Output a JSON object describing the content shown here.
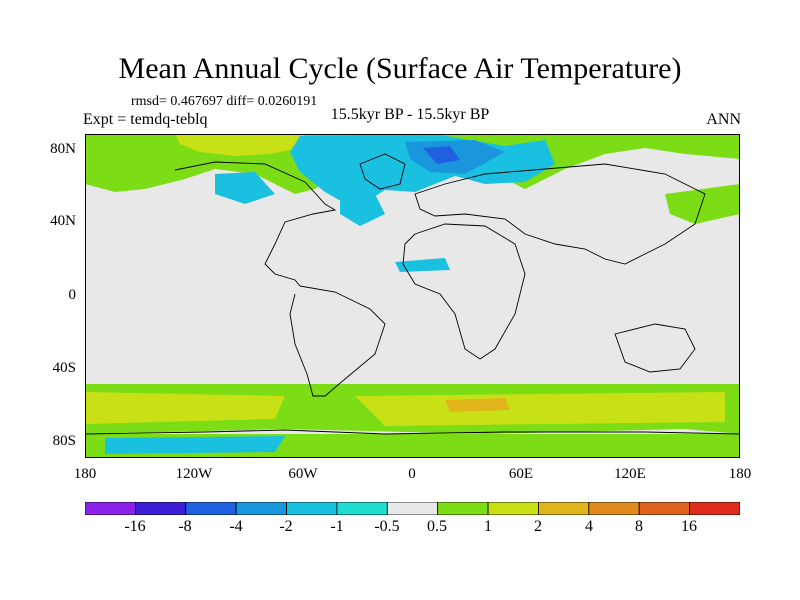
{
  "title": "Mean Annual Cycle (Surface Air Temperature)",
  "stats": "rmsd= 0.467697 diff= 0.0260191",
  "experiment": "Expt = temdq-teblq",
  "comparison": "15.5kyr BP - 15.5kyr BP",
  "season": "ANN",
  "lat_labels": [
    "80N",
    "40N",
    "0",
    "40S",
    "80S"
  ],
  "lon_labels": [
    "180",
    "120W",
    "60W",
    "0",
    "60E",
    "120E",
    "180"
  ],
  "colorbar": {
    "labels": [
      "-16",
      "-8",
      "-4",
      "-2",
      "-1",
      "-0.5",
      "0.5",
      "1",
      "2",
      "4",
      "8",
      "16"
    ],
    "colors": [
      "#8c22ea",
      "#3c1fd6",
      "#1f5fe0",
      "#1a97dc",
      "#19c0e0",
      "#1fdcd0",
      "#e8e8e8",
      "#7cdc16",
      "#c8e016",
      "#e0b41a",
      "#e08a1f",
      "#e06420",
      "#e02c1c"
    ]
  },
  "palette": {
    "neutral": "#e8e8e8",
    "pos1": "#7cdc16",
    "pos2": "#c8e016",
    "pos3": "#e0b41a",
    "pos4": "#e08a1f",
    "neg1": "#1fdcd0",
    "neg2": "#19c0e0",
    "neg3": "#1a97dc",
    "neg4": "#1f5fe0"
  }
}
